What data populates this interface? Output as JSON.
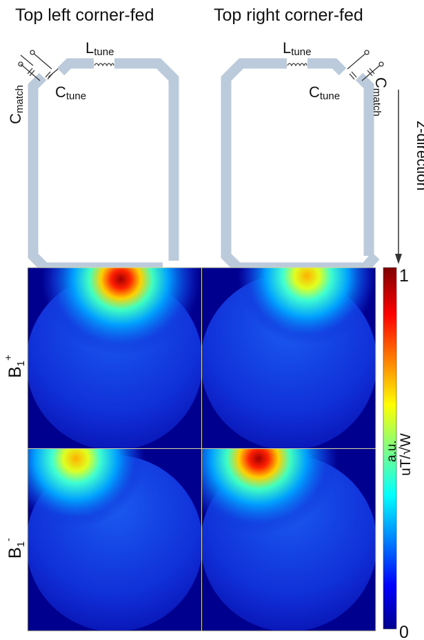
{
  "titles": {
    "left": "Top left corner-fed",
    "right": "Top right corner-fed"
  },
  "components": {
    "l_tune": {
      "main": "L",
      "sub": "tune"
    },
    "c_tune": {
      "main": "C",
      "sub": "tune"
    },
    "c_match": {
      "main": "C",
      "sub": "match"
    }
  },
  "direction_label": "z-direction",
  "rows": [
    {
      "main": "B",
      "sub": "1",
      "sup": "+"
    },
    {
      "main": "B",
      "sub": "1",
      "sup": "-"
    }
  ],
  "colorbar": {
    "max_label": "1",
    "min_label": "0",
    "unit_top": "a.u.",
    "unit_bottom": "uT/√W",
    "colormap": "jet"
  },
  "colors": {
    "coil": "#bccbdc",
    "background_map": "#00008f",
    "divider": "#d8d8a0"
  }
}
